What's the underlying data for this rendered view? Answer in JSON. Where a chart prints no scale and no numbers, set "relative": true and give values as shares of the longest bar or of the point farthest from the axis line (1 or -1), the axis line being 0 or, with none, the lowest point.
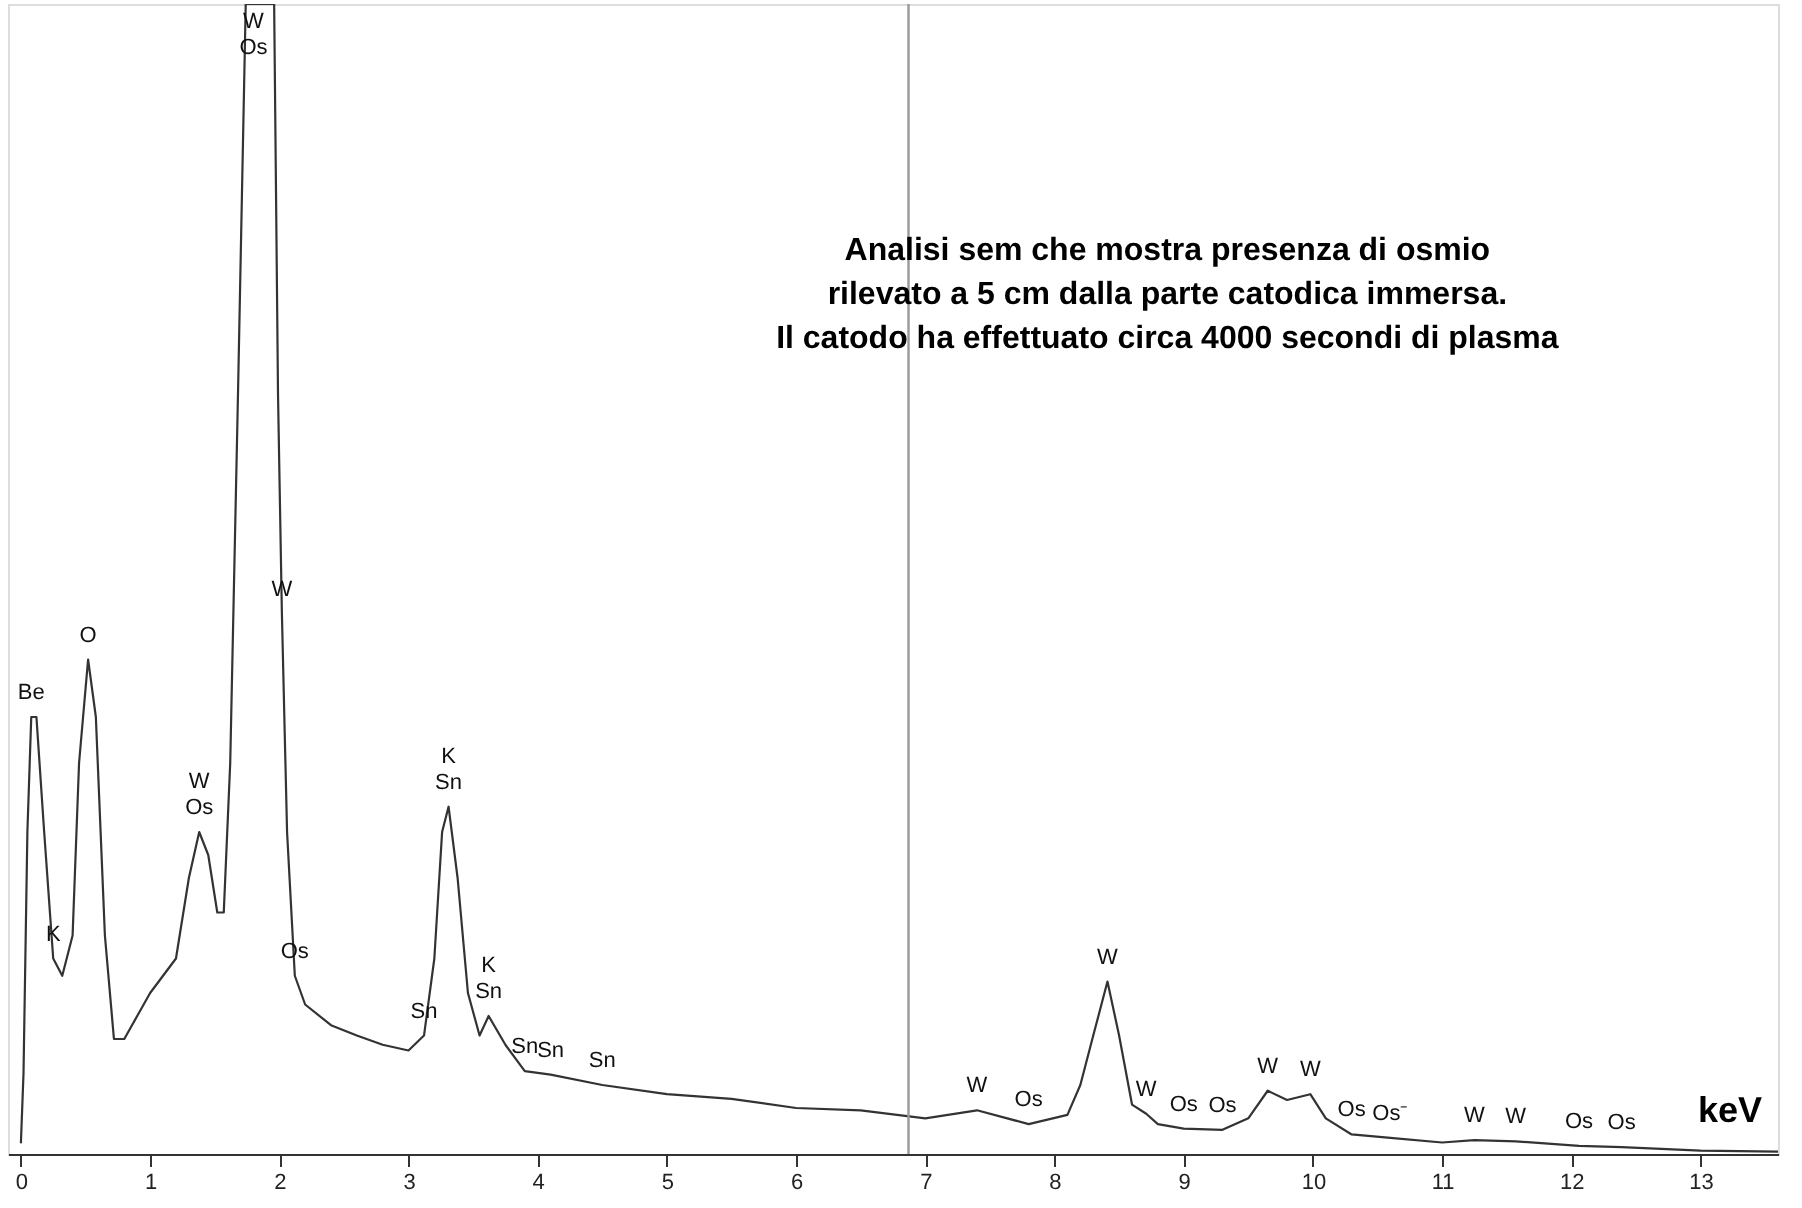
{
  "chart_data": {
    "type": "line",
    "relative": true,
    "title": "Analisi sem che mostra presenza di osmio\nrilevato a 5 cm dalla parte catodica immersa.\nIl catodo ha effettuato circa 4000 secondi di plasma",
    "xlabel": "keV",
    "x": [
      0,
      0.02,
      0.05,
      0.08,
      0.12,
      0.18,
      0.25,
      0.32,
      0.4,
      0.45,
      0.52,
      0.58,
      0.65,
      0.72,
      0.8,
      0.9,
      1.0,
      1.1,
      1.2,
      1.3,
      1.38,
      1.45,
      1.52,
      1.57,
      1.62,
      1.68,
      1.74,
      1.8,
      1.96,
      1.99,
      2.02,
      2.06,
      2.12,
      2.2,
      2.4,
      2.6,
      2.8,
      3.0,
      3.12,
      3.2,
      3.26,
      3.31,
      3.38,
      3.46,
      3.55,
      3.62,
      3.75,
      3.9,
      4.1,
      4.5,
      5,
      5.5,
      6,
      6.5,
      7,
      7.4,
      7.8,
      8.1,
      8.2,
      8.3,
      8.41,
      8.5,
      8.6,
      8.71,
      8.8,
      9.0,
      9.3,
      9.5,
      9.65,
      9.8,
      9.98,
      10.1,
      10.3,
      10.6,
      11,
      11.25,
      11.57,
      12.06,
      12.39,
      13,
      13.6
    ],
    "series": [
      {
        "color": "#333333",
        "values": [
          0.01,
          0.07,
          0.28,
          0.38,
          0.38,
          0.28,
          0.17,
          0.155,
          0.19,
          0.34,
          0.43,
          0.38,
          0.19,
          0.1,
          0.1,
          0.12,
          0.14,
          0.155,
          0.17,
          0.24,
          0.28,
          0.26,
          0.21,
          0.21,
          0.34,
          0.66,
          1,
          1,
          1,
          0.66,
          0.47,
          0.28,
          0.155,
          0.13,
          0.112,
          0.103,
          0.095,
          0.09,
          0.103,
          0.17,
          0.28,
          0.302,
          0.24,
          0.14,
          0.103,
          0.12,
          0.095,
          0.072,
          0.069,
          0.06,
          0.052,
          0.048,
          0.04,
          0.038,
          0.031,
          0.038,
          0.026,
          0.034,
          0.06,
          0.103,
          0.15,
          0.103,
          0.043,
          0.035,
          0.026,
          0.022,
          0.021,
          0.031,
          0.055,
          0.047,
          0.052,
          0.031,
          0.017,
          0.014,
          0.01,
          0.012,
          0.011,
          0.007,
          0.006,
          0.003,
          0.002
        ]
      }
    ],
    "xlim": [
      -0.1,
      13.6
    ],
    "xticks": [
      0,
      1,
      2,
      3,
      4,
      5,
      6,
      7,
      8,
      9,
      10,
      11,
      12,
      13
    ],
    "grid": false,
    "marker": "none",
    "line_style": "solid",
    "ref_lines": [
      {
        "axis": "x",
        "value": 6.87,
        "color": "#999999"
      }
    ],
    "annotations": [
      {
        "text": "Be",
        "x": 0.08,
        "y": 0.38
      },
      {
        "text": "K",
        "x": 0.25,
        "y": 0.17
      },
      {
        "text": "O",
        "x": 0.52,
        "y": 0.43
      },
      {
        "text": "W",
        "x": 1.38,
        "y": 0.28
      },
      {
        "text": "Os",
        "x": 1.38,
        "y": 0.28
      },
      {
        "text": "W",
        "x": 1.8,
        "y": 1
      },
      {
        "text": "Os",
        "x": 1.8,
        "y": 1
      },
      {
        "text": "W",
        "x": 2.02,
        "y": 0.47
      },
      {
        "text": "Os",
        "x": 2.12,
        "y": 0.155
      },
      {
        "text": "Sn",
        "x": 3.12,
        "y": 0.103
      },
      {
        "text": "K",
        "x": 3.31,
        "y": 0.302
      },
      {
        "text": "Sn",
        "x": 3.31,
        "y": 0.302
      },
      {
        "text": "K",
        "x": 3.62,
        "y": 0.12
      },
      {
        "text": "Sn",
        "x": 3.62,
        "y": 0.12
      },
      {
        "text": "Sn",
        "x": 3.9,
        "y": 0.072
      },
      {
        "text": "Sn",
        "x": 4.1,
        "y": 0.069
      },
      {
        "text": "Sn",
        "x": 4.5,
        "y": 0.06
      },
      {
        "text": "W",
        "x": 7.4,
        "y": 0.038
      },
      {
        "text": "Os",
        "x": 7.8,
        "y": 0.026
      },
      {
        "text": "W",
        "x": 8.41,
        "y": 0.15
      },
      {
        "text": "W",
        "x": 8.71,
        "y": 0.035
      },
      {
        "text": "Os",
        "x": 9.0,
        "y": 0.022
      },
      {
        "text": "Os",
        "x": 9.3,
        "y": 0.021
      },
      {
        "text": "W",
        "x": 9.65,
        "y": 0.055
      },
      {
        "text": "W",
        "x": 9.98,
        "y": 0.052
      },
      {
        "text": "Os",
        "x": 10.3,
        "y": 0.017
      },
      {
        "text": "Os⁻",
        "x": 10.6,
        "y": 0.014
      },
      {
        "text": "W",
        "x": 11.25,
        "y": 0.012
      },
      {
        "text": "W",
        "x": 11.57,
        "y": 0.011
      },
      {
        "text": "Os",
        "x": 12.06,
        "y": 0.007
      },
      {
        "text": "Os",
        "x": 12.39,
        "y": 0.006
      }
    ]
  }
}
